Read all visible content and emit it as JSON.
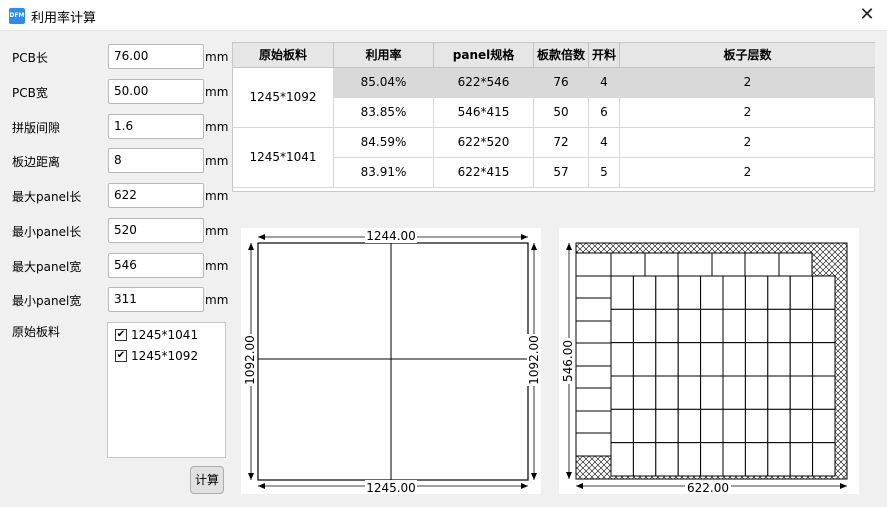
{
  "window": {
    "title": "利用率计算",
    "icon_text": "DFM",
    "close_glyph": "✕"
  },
  "form": {
    "unit": "mm",
    "fields": [
      {
        "label": "PCB长",
        "value": "76.00"
      },
      {
        "label": "PCB宽",
        "value": "50.00"
      },
      {
        "label": "拼版间隙",
        "value": "1.6"
      },
      {
        "label": "板边距离",
        "value": "8"
      },
      {
        "label": "最大panel长",
        "value": "622"
      },
      {
        "label": "最小panel长",
        "value": "520"
      },
      {
        "label": "最大panel宽",
        "value": "546"
      },
      {
        "label": "最小panel宽",
        "value": "311"
      }
    ],
    "board_label": "原始板料",
    "boards": [
      {
        "label": "1245*1041",
        "checked": true
      },
      {
        "label": "1245*1092",
        "checked": true
      }
    ],
    "calc_button": "计算"
  },
  "table": {
    "headers": [
      "原始板料",
      "利用率",
      "panel规格",
      "板款倍数",
      "开料",
      "板子层数"
    ],
    "groups": [
      {
        "board": "1245*1092",
        "rows": [
          {
            "rate": "85.04%",
            "panel": "622*546",
            "multiple": "76",
            "cuts": "4",
            "layers": "2",
            "selected": true
          },
          {
            "rate": "83.85%",
            "panel": "546*415",
            "multiple": "50",
            "cuts": "6",
            "layers": "2",
            "selected": false
          }
        ]
      },
      {
        "board": "1245*1041",
        "rows": [
          {
            "rate": "84.59%",
            "panel": "622*520",
            "multiple": "72",
            "cuts": "4",
            "layers": "2",
            "selected": false
          },
          {
            "rate": "83.91%",
            "panel": "622*415",
            "multiple": "57",
            "cuts": "5",
            "layers": "2",
            "selected": false
          }
        ]
      }
    ]
  },
  "board_drawing": {
    "top_dim": "1244.00",
    "bottom_dim": "1245.00",
    "left_dim": "1092.00",
    "right_dim": "1092.00"
  },
  "panel_drawing": {
    "width_dim": "622.00",
    "height_dim": "546.00"
  },
  "colors": {
    "selected_row": "#d9d9d9",
    "header_bg": "#e6e6e6"
  }
}
